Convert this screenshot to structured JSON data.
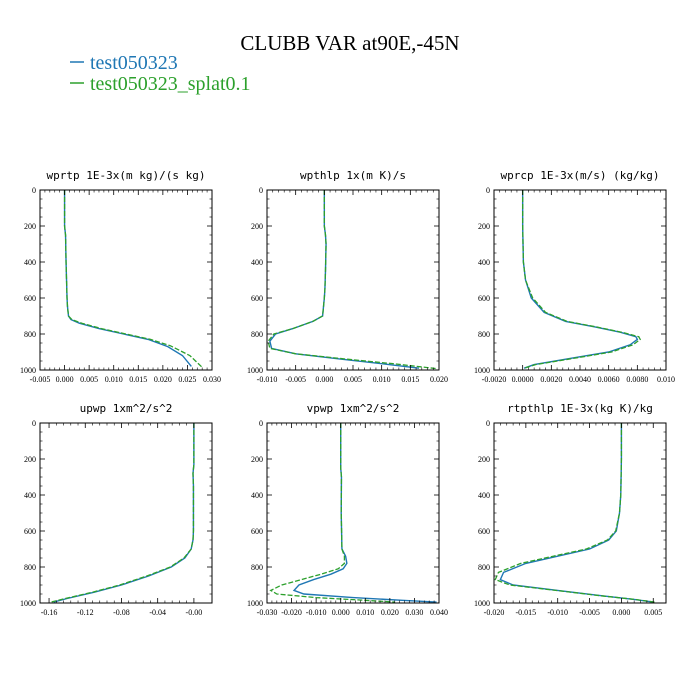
{
  "figure": {
    "title": "CLUBB VAR at90E,-45N",
    "legend": [
      {
        "name": "test050323",
        "color": "#1f77b4"
      },
      {
        "name": "test050323_splat0.1",
        "color": "#2ca02c"
      }
    ]
  },
  "chart_data": [
    {
      "type": "line",
      "title": "wprtp  1E-3x(m kg)/(s kg)",
      "xlim": [
        -0.005,
        0.03
      ],
      "ylim": [
        1000,
        0
      ],
      "xticks": [
        "-0.005",
        "0.000",
        "0.005",
        "0.010",
        "0.015",
        "0.020",
        "0.025",
        "0.030"
      ],
      "xtick_values": [
        -0.005,
        0.0,
        0.005,
        0.01,
        0.015,
        0.02,
        0.025,
        0.03
      ],
      "yticks": [
        "0",
        "200",
        "400",
        "600",
        "800",
        "1000"
      ],
      "ytick_values": [
        0,
        200,
        400,
        600,
        800,
        1000
      ],
      "series": [
        {
          "name": "test050323",
          "color": "#1f77b4",
          "x": [
            0.0,
            0.0,
            0.0002,
            0.0003,
            0.0004,
            0.0005,
            0.0006,
            0.0008,
            0.0013,
            0.003,
            0.007,
            0.012,
            0.017,
            0.021,
            0.024,
            0.0258
          ],
          "y": [
            0,
            200,
            250,
            400,
            500,
            600,
            650,
            700,
            720,
            740,
            770,
            800,
            830,
            870,
            920,
            980
          ]
        },
        {
          "name": "test050323_splat0.1",
          "color": "#2ca02c",
          "x": [
            0.0,
            0.0,
            0.0002,
            0.0003,
            0.0004,
            0.0005,
            0.0006,
            0.0008,
            0.0015,
            0.0035,
            0.0075,
            0.0125,
            0.0175,
            0.0215,
            0.0255,
            0.028
          ],
          "y": [
            0,
            200,
            250,
            400,
            500,
            600,
            650,
            700,
            720,
            740,
            770,
            800,
            830,
            865,
            920,
            985
          ]
        }
      ]
    },
    {
      "type": "line",
      "title": "wpthlp  1x(m K)/s",
      "xlim": [
        -0.01,
        0.02
      ],
      "ylim": [
        1000,
        0
      ],
      "xticks": [
        "-0.010",
        "-0.005",
        "0.000",
        "0.005",
        "0.010",
        "0.015",
        "0.020"
      ],
      "xtick_values": [
        -0.01,
        -0.005,
        0.0,
        0.005,
        0.01,
        0.015,
        0.02
      ],
      "yticks": [
        "0",
        "200",
        "400",
        "600",
        "800",
        "1000"
      ],
      "ytick_values": [
        0,
        200,
        400,
        600,
        800,
        1000
      ],
      "series": [
        {
          "name": "test050323",
          "color": "#1f77b4",
          "x": [
            0.0,
            0.0,
            0.0002,
            0.0003,
            0.0002,
            0.0001,
            0.0,
            -0.0003,
            -0.002,
            -0.0055,
            -0.0085,
            -0.0095,
            -0.0092,
            -0.005,
            0.003,
            0.01,
            0.0165
          ],
          "y": [
            0,
            200,
            250,
            300,
            450,
            550,
            600,
            700,
            730,
            770,
            800,
            840,
            880,
            910,
            940,
            965,
            990
          ]
        },
        {
          "name": "test050323_splat0.1",
          "color": "#2ca02c",
          "x": [
            0.0,
            0.0,
            0.0002,
            0.0003,
            0.0002,
            0.0001,
            0.0,
            -0.0003,
            -0.002,
            -0.0055,
            -0.0088,
            -0.0098,
            -0.0095,
            -0.005,
            0.004,
            0.012,
            0.0195
          ],
          "y": [
            0,
            200,
            250,
            300,
            450,
            550,
            600,
            700,
            730,
            770,
            800,
            840,
            880,
            910,
            940,
            965,
            992
          ]
        }
      ]
    },
    {
      "type": "line",
      "title": "wprcp  1E-3x(m/s) (kg/kg)",
      "xlim": [
        -0.002,
        0.01
      ],
      "ylim": [
        1000,
        0
      ],
      "xticks": [
        "-0.0020",
        "0.0000",
        "0.0020",
        "0.0040",
        "0.0060",
        "0.0080",
        "0.010"
      ],
      "xtick_values": [
        -0.002,
        0.0,
        0.002,
        0.004,
        0.006,
        0.008,
        0.01
      ],
      "yticks": [
        "0",
        "200",
        "400",
        "600",
        "800",
        "1000"
      ],
      "ytick_values": [
        0,
        200,
        400,
        600,
        800,
        1000
      ],
      "series": [
        {
          "name": "test050323",
          "color": "#1f77b4",
          "x": [
            0.0,
            0.0,
            5e-05,
            0.0002,
            0.0006,
            0.0015,
            0.003,
            0.005,
            0.0068,
            0.0079,
            0.008,
            0.0075,
            0.006,
            0.003,
            0.0008,
            0.0001
          ],
          "y": [
            0,
            200,
            400,
            500,
            600,
            680,
            730,
            760,
            790,
            815,
            830,
            860,
            900,
            940,
            970,
            990
          ]
        },
        {
          "name": "test050323_splat0.1",
          "color": "#2ca02c",
          "x": [
            0.0,
            0.0,
            5e-05,
            0.0002,
            0.0007,
            0.0016,
            0.0031,
            0.0051,
            0.0069,
            0.0081,
            0.0082,
            0.0077,
            0.0062,
            0.0032,
            0.0009,
            0.0001
          ],
          "y": [
            0,
            200,
            400,
            500,
            600,
            680,
            730,
            760,
            790,
            815,
            830,
            860,
            900,
            940,
            970,
            990
          ]
        }
      ]
    },
    {
      "type": "line",
      "title": "upwp  1xm^2/s^2",
      "xlim": [
        -0.17,
        0.02
      ],
      "ylim": [
        1000,
        0
      ],
      "xticks": [
        "-0.16",
        "-0.12",
        "-0.08",
        "-0.04",
        "-0.00"
      ],
      "xtick_values": [
        -0.16,
        -0.12,
        -0.08,
        -0.04,
        0.0
      ],
      "yticks": [
        "0",
        "200",
        "400",
        "600",
        "800",
        "1000"
      ],
      "ytick_values": [
        0,
        200,
        400,
        600,
        800,
        1000
      ],
      "series": [
        {
          "name": "test050323",
          "color": "#1f77b4",
          "x": [
            0.0,
            0.0,
            -0.001,
            -0.0005,
            -0.0005,
            -0.001,
            -0.003,
            -0.01,
            -0.025,
            -0.05,
            -0.08,
            -0.11,
            -0.14,
            -0.155
          ],
          "y": [
            0,
            230,
            280,
            350,
            600,
            650,
            700,
            750,
            800,
            850,
            900,
            940,
            975,
            995
          ]
        },
        {
          "name": "test050323_splat0.1",
          "color": "#2ca02c",
          "x": [
            0.0,
            0.0,
            -0.001,
            -0.0005,
            -0.0005,
            -0.001,
            -0.003,
            -0.011,
            -0.026,
            -0.052,
            -0.082,
            -0.112,
            -0.142,
            -0.158
          ],
          "y": [
            0,
            230,
            280,
            350,
            600,
            650,
            700,
            750,
            800,
            850,
            900,
            940,
            975,
            995
          ]
        }
      ]
    },
    {
      "type": "line",
      "title": "vpwp  1xm^2/s^2",
      "xlim": [
        -0.03,
        0.04
      ],
      "ylim": [
        1000,
        0
      ],
      "xticks": [
        "-0.030",
        "-0.020",
        "-0.010",
        "0.000",
        "0.010",
        "0.020",
        "0.030",
        "0.040"
      ],
      "xtick_values": [
        -0.03,
        -0.02,
        -0.01,
        0.0,
        0.01,
        0.02,
        0.03,
        0.04
      ],
      "yticks": [
        "0",
        "200",
        "400",
        "600",
        "800",
        "1000"
      ],
      "ytick_values": [
        0,
        200,
        400,
        600,
        800,
        1000
      ],
      "series": [
        {
          "name": "test050323",
          "color": "#1f77b4",
          "x": [
            0.0,
            0.0,
            0.0003,
            0.0002,
            0.0005,
            0.002,
            0.0025,
            0.001,
            -0.004,
            -0.011,
            -0.017,
            -0.019,
            -0.015,
            0.005,
            0.025,
            0.039
          ],
          "y": [
            0,
            250,
            300,
            500,
            700,
            740,
            780,
            810,
            840,
            870,
            900,
            930,
            950,
            970,
            985,
            995
          ]
        },
        {
          "name": "test050323_splat0.1",
          "color": "#2ca02c",
          "x": [
            0.0,
            0.0,
            0.0003,
            0.0002,
            0.0005,
            0.0015,
            0.0015,
            -0.001,
            -0.008,
            -0.016,
            -0.024,
            -0.0285,
            -0.026,
            -0.01,
            0.01,
            0.022
          ],
          "y": [
            0,
            250,
            300,
            500,
            700,
            740,
            780,
            810,
            840,
            870,
            900,
            930,
            950,
            970,
            985,
            995
          ]
        }
      ]
    },
    {
      "type": "line",
      "title": "rtpthlp  1E-3x(kg K)/kg",
      "xlim": [
        -0.02,
        0.007
      ],
      "ylim": [
        1000,
        0
      ],
      "xticks": [
        "-0.020",
        "-0.015",
        "-0.010",
        "-0.005",
        "0.000",
        "0.005"
      ],
      "xtick_values": [
        -0.02,
        -0.015,
        -0.01,
        -0.005,
        0.0,
        0.005
      ],
      "yticks": [
        "0",
        "200",
        "400",
        "600",
        "800",
        "1000"
      ],
      "ytick_values": [
        0,
        200,
        400,
        600,
        800,
        1000
      ],
      "series": [
        {
          "name": "test050323",
          "color": "#1f77b4",
          "x": [
            0.0,
            0.0,
            -0.0001,
            -0.0003,
            -0.0008,
            -0.002,
            -0.005,
            -0.01,
            -0.015,
            -0.0185,
            -0.019,
            -0.017,
            -0.01,
            -0.003,
            0.002,
            0.005
          ],
          "y": [
            0,
            200,
            400,
            500,
            600,
            650,
            700,
            740,
            780,
            830,
            870,
            900,
            930,
            960,
            980,
            995
          ]
        },
        {
          "name": "test050323_splat0.1",
          "color": "#2ca02c",
          "x": [
            0.0,
            0.0,
            -0.0001,
            -0.0003,
            -0.0009,
            -0.0022,
            -0.0055,
            -0.0107,
            -0.0158,
            -0.0193,
            -0.0198,
            -0.0175,
            -0.0103,
            -0.0032,
            0.0021,
            0.0052
          ],
          "y": [
            0,
            200,
            400,
            500,
            600,
            650,
            700,
            740,
            780,
            830,
            870,
            900,
            930,
            960,
            980,
            995
          ]
        }
      ]
    }
  ]
}
